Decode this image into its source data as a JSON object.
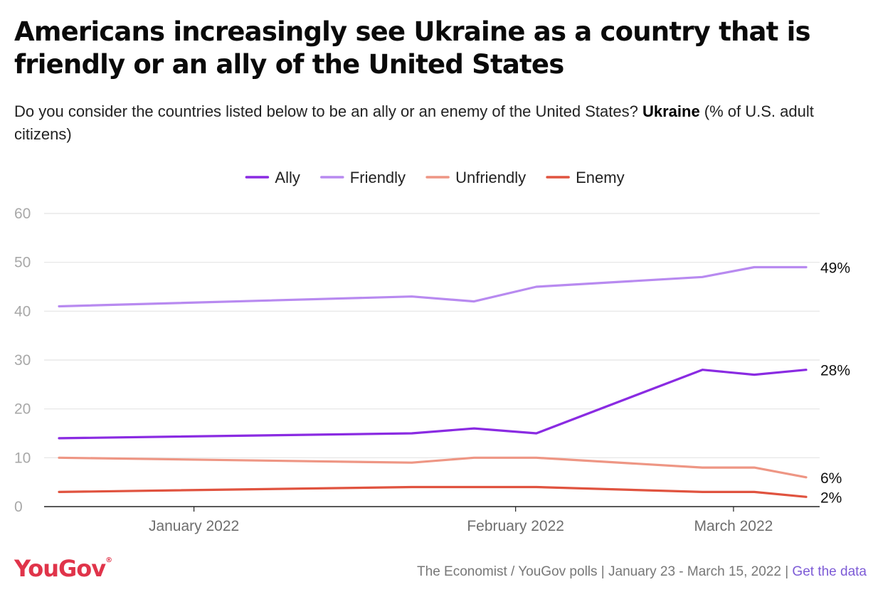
{
  "header": {
    "title": "Americans increasingly see Ukraine as a country that is friendly or an ally of the United States",
    "subtitle_prefix": "Do you consider the countries listed below to be an ally or an enemy of the United States? ",
    "subtitle_bold": "Ukraine",
    "subtitle_suffix": " (% of U.S. adult citizens)"
  },
  "footer": {
    "logo": "YouGov",
    "logo_mark": "®",
    "source": "The Economist / YouGov polls | January 23 - March 15, 2022 | ",
    "link": "Get the data"
  },
  "colors": {
    "ally": "#8a2be2",
    "friendly": "#b88af0",
    "unfriendly": "#ee9684",
    "enemy": "#e0533f",
    "grid": "#e4e4e4",
    "axis": "#222222"
  },
  "chart_data": {
    "type": "line",
    "title": "Americans increasingly see Ukraine as a country that is friendly or an ally of the United States",
    "x": [
      "2022-01-23",
      "2022-01-30",
      "2022-02-06",
      "2022-02-13",
      "2022-02-20",
      "2022-02-26",
      "2022-03-06",
      "2022-03-12",
      "2022-03-15"
    ],
    "x_ticks": [
      {
        "date": "2022-01-15",
        "label": "January 2022"
      },
      {
        "date": "2022-02-15",
        "label": "February 2022"
      },
      {
        "date": "2022-03-08",
        "label": "March 2022"
      }
    ],
    "ylim": [
      0,
      60
    ],
    "y_ticks": [
      0,
      10,
      20,
      30,
      40,
      50,
      60
    ],
    "grid": true,
    "legend_position": "top-center",
    "series": [
      {
        "name": "Ally",
        "color_key": "ally",
        "end_label": "28%",
        "points": [
          {
            "date": "2022-01-02",
            "value": 14
          },
          {
            "date": "2022-02-05",
            "value": 15
          },
          {
            "date": "2022-02-11",
            "value": 16
          },
          {
            "date": "2022-02-17",
            "value": 15
          },
          {
            "date": "2022-03-05",
            "value": 28
          },
          {
            "date": "2022-03-10",
            "value": 27
          },
          {
            "date": "2022-03-15",
            "value": 28
          }
        ]
      },
      {
        "name": "Friendly",
        "color_key": "friendly",
        "end_label": "49%",
        "points": [
          {
            "date": "2022-01-02",
            "value": 41
          },
          {
            "date": "2022-02-05",
            "value": 43
          },
          {
            "date": "2022-02-11",
            "value": 42
          },
          {
            "date": "2022-02-17",
            "value": 45
          },
          {
            "date": "2022-03-05",
            "value": 47
          },
          {
            "date": "2022-03-10",
            "value": 49
          },
          {
            "date": "2022-03-15",
            "value": 49
          }
        ]
      },
      {
        "name": "Unfriendly",
        "color_key": "unfriendly",
        "end_label": "6%",
        "points": [
          {
            "date": "2022-01-02",
            "value": 10
          },
          {
            "date": "2022-02-05",
            "value": 9
          },
          {
            "date": "2022-02-11",
            "value": 10
          },
          {
            "date": "2022-02-17",
            "value": 10
          },
          {
            "date": "2022-03-05",
            "value": 8
          },
          {
            "date": "2022-03-10",
            "value": 8
          },
          {
            "date": "2022-03-15",
            "value": 6
          }
        ]
      },
      {
        "name": "Enemy",
        "color_key": "enemy",
        "end_label": "2%",
        "points": [
          {
            "date": "2022-01-02",
            "value": 3
          },
          {
            "date": "2022-02-05",
            "value": 4
          },
          {
            "date": "2022-02-11",
            "value": 4
          },
          {
            "date": "2022-02-17",
            "value": 4
          },
          {
            "date": "2022-03-05",
            "value": 3
          },
          {
            "date": "2022-03-10",
            "value": 3
          },
          {
            "date": "2022-03-15",
            "value": 2
          }
        ]
      }
    ]
  }
}
